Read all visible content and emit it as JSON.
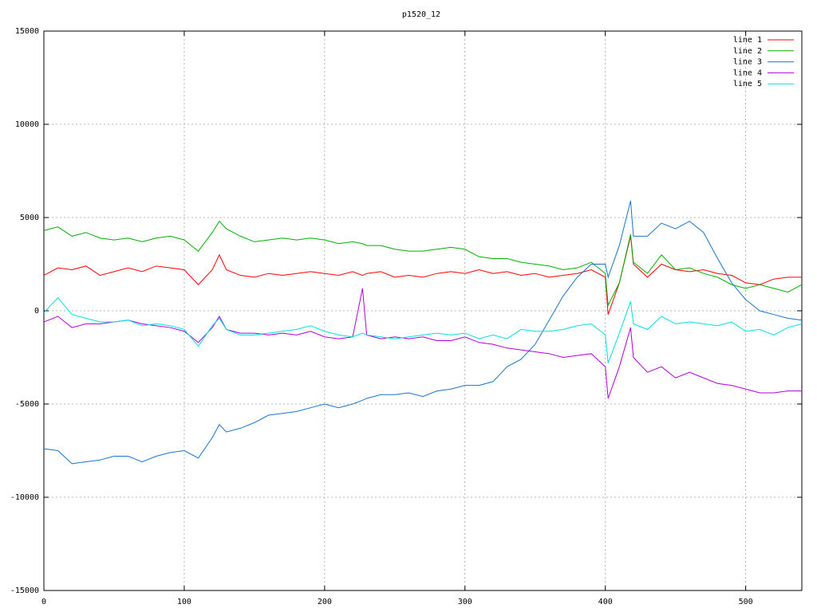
{
  "chart_data": {
    "type": "line",
    "title": "p1520_12",
    "x": [
      0,
      10,
      20,
      30,
      40,
      50,
      60,
      70,
      80,
      90,
      100,
      110,
      120,
      125,
      130,
      140,
      150,
      160,
      170,
      180,
      190,
      200,
      210,
      220,
      227,
      230,
      240,
      250,
      260,
      270,
      280,
      290,
      300,
      310,
      320,
      330,
      340,
      350,
      360,
      370,
      380,
      390,
      400,
      402,
      410,
      418,
      420,
      430,
      440,
      450,
      460,
      470,
      480,
      490,
      500,
      510,
      520,
      530,
      540
    ],
    "series": [
      {
        "name": "line 1",
        "color": "#ff0000",
        "values": [
          1900,
          2300,
          2200,
          2400,
          1900,
          2100,
          2300,
          2100,
          2400,
          2300,
          2200,
          1400,
          2200,
          3000,
          2200,
          1900,
          1800,
          2000,
          1900,
          2000,
          2100,
          2000,
          1900,
          2100,
          1900,
          2000,
          2100,
          1800,
          1900,
          1800,
          2000,
          2100,
          2000,
          2200,
          2000,
          2100,
          1900,
          2000,
          1800,
          1900,
          2000,
          2200,
          1800,
          -200,
          1500,
          4000,
          2500,
          1800,
          2500,
          2200,
          2100,
          2200,
          2000,
          1900,
          1500,
          1400,
          1700,
          1800,
          1800
        ]
      },
      {
        "name": "line 2",
        "color": "#00b000",
        "values": [
          4300,
          4500,
          4000,
          4200,
          3900,
          3800,
          3900,
          3700,
          3900,
          4000,
          3800,
          3200,
          4200,
          4800,
          4400,
          4000,
          3700,
          3800,
          3900,
          3800,
          3900,
          3800,
          3600,
          3700,
          3600,
          3500,
          3500,
          3300,
          3200,
          3200,
          3300,
          3400,
          3300,
          2900,
          2800,
          2800,
          2600,
          2500,
          2400,
          2200,
          2300,
          2600,
          2000,
          300,
          1500,
          4100,
          2600,
          2000,
          3000,
          2200,
          2300,
          2000,
          1800,
          1400,
          1200,
          1400,
          1200,
          1000,
          1400
        ]
      },
      {
        "name": "line 3",
        "color": "#1874cd",
        "values": [
          -7400,
          -7500,
          -8200,
          -8100,
          -8000,
          -7800,
          -7800,
          -8100,
          -7800,
          -7600,
          -7500,
          -7900,
          -6800,
          -6100,
          -6500,
          -6300,
          -6000,
          -5600,
          -5500,
          -5400,
          -5200,
          -5000,
          -5200,
          -5000,
          -4800,
          -4700,
          -4500,
          -4500,
          -4400,
          -4600,
          -4300,
          -4200,
          -4000,
          -4000,
          -3800,
          -3000,
          -2600,
          -1800,
          -500,
          800,
          1800,
          2500,
          2500,
          1800,
          3500,
          5900,
          4000,
          4000,
          4700,
          4400,
          4800,
          4200,
          2800,
          1500,
          600,
          0,
          -200,
          -400,
          -500
        ]
      },
      {
        "name": "line 4",
        "color": "#b000e0",
        "values": [
          -600,
          -300,
          -900,
          -700,
          -700,
          -600,
          -500,
          -700,
          -800,
          -900,
          -1100,
          -1700,
          -900,
          -300,
          -1000,
          -1200,
          -1200,
          -1300,
          -1200,
          -1300,
          -1100,
          -1400,
          -1500,
          -1400,
          1200,
          -1300,
          -1500,
          -1400,
          -1500,
          -1400,
          -1600,
          -1600,
          -1400,
          -1700,
          -1800,
          -2000,
          -2100,
          -2200,
          -2300,
          -2500,
          -2400,
          -2300,
          -3000,
          -4700,
          -3000,
          -900,
          -2500,
          -3300,
          -3000,
          -3600,
          -3300,
          -3600,
          -3900,
          -4000,
          -4200,
          -4400,
          -4400,
          -4300,
          -4300
        ]
      },
      {
        "name": "line 5",
        "color": "#00e0e0",
        "values": [
          -100,
          700,
          -200,
          -400,
          -600,
          -600,
          -500,
          -800,
          -700,
          -800,
          -1000,
          -1900,
          -800,
          -400,
          -1000,
          -1300,
          -1300,
          -1200,
          -1100,
          -1000,
          -800,
          -1100,
          -1300,
          -1400,
          -1200,
          -1300,
          -1400,
          -1500,
          -1400,
          -1300,
          -1200,
          -1300,
          -1200,
          -1500,
          -1300,
          -1500,
          -1000,
          -1100,
          -1100,
          -1000,
          -800,
          -700,
          -1300,
          -2800,
          -1200,
          500,
          -700,
          -1000,
          -300,
          -700,
          -600,
          -700,
          -800,
          -600,
          -1100,
          -1000,
          -1300,
          -900,
          -700
        ]
      }
    ],
    "xlim": [
      0,
      540
    ],
    "xticks": [
      0,
      100,
      200,
      300,
      400,
      500
    ],
    "ylim": [
      -15000,
      15000
    ],
    "yticks": [
      -15000,
      -10000,
      -5000,
      0,
      5000,
      10000,
      15000
    ],
    "grid": true,
    "legend": "top-right"
  }
}
